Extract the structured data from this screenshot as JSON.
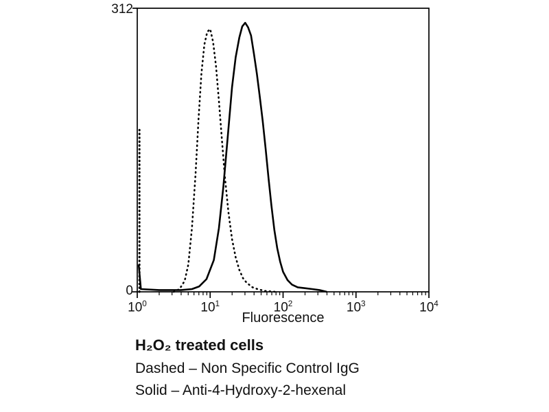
{
  "chart_data": {
    "type": "line",
    "title": "",
    "xlabel": "Fluorescence",
    "ylabel": "",
    "x_scale": "log",
    "x_tick_base": "10",
    "x_tick_exponents": [
      0,
      1,
      2,
      3,
      4
    ],
    "xlim_log": [
      0,
      4
    ],
    "ylim": [
      0,
      312
    ],
    "grid": false,
    "legend_position": "none",
    "series": [
      {
        "name": "Non Specific Control IgG",
        "style": "dashed",
        "points": [
          [
            0.5,
            0
          ],
          [
            0.58,
            3
          ],
          [
            0.65,
            12
          ],
          [
            0.7,
            30
          ],
          [
            0.75,
            70
          ],
          [
            0.8,
            130
          ],
          [
            0.84,
            190
          ],
          [
            0.88,
            240
          ],
          [
            0.92,
            272
          ],
          [
            0.96,
            286
          ],
          [
            1.0,
            289
          ],
          [
            1.04,
            275
          ],
          [
            1.08,
            248
          ],
          [
            1.12,
            210
          ],
          [
            1.16,
            168
          ],
          [
            1.2,
            128
          ],
          [
            1.25,
            88
          ],
          [
            1.3,
            58
          ],
          [
            1.35,
            38
          ],
          [
            1.4,
            24
          ],
          [
            1.45,
            15
          ],
          [
            1.5,
            10
          ],
          [
            1.58,
            5
          ],
          [
            1.65,
            3
          ],
          [
            1.75,
            1
          ],
          [
            1.9,
            0
          ]
        ]
      },
      {
        "name": "Anti-4-Hydroxy-2-hexenal",
        "style": "solid",
        "points": [
          [
            0.02,
            30
          ],
          [
            0.05,
            3
          ],
          [
            0.3,
            2
          ],
          [
            0.6,
            2
          ],
          [
            0.75,
            3
          ],
          [
            0.85,
            6
          ],
          [
            0.95,
            14
          ],
          [
            1.05,
            35
          ],
          [
            1.12,
            70
          ],
          [
            1.18,
            115
          ],
          [
            1.24,
            170
          ],
          [
            1.3,
            225
          ],
          [
            1.35,
            258
          ],
          [
            1.4,
            280
          ],
          [
            1.44,
            292
          ],
          [
            1.48,
            296
          ],
          [
            1.52,
            291
          ],
          [
            1.56,
            282
          ],
          [
            1.6,
            262
          ],
          [
            1.64,
            240
          ],
          [
            1.68,
            215
          ],
          [
            1.72,
            188
          ],
          [
            1.76,
            158
          ],
          [
            1.8,
            125
          ],
          [
            1.84,
            95
          ],
          [
            1.88,
            68
          ],
          [
            1.92,
            48
          ],
          [
            1.96,
            33
          ],
          [
            2.0,
            22
          ],
          [
            2.06,
            13
          ],
          [
            2.12,
            8
          ],
          [
            2.2,
            5
          ],
          [
            2.3,
            4
          ],
          [
            2.4,
            3
          ],
          [
            2.5,
            2
          ],
          [
            2.6,
            0
          ]
        ]
      }
    ],
    "axis_spike": {
      "series": "Non Specific Control IgG",
      "x_log": 0.03,
      "height": 180
    }
  },
  "caption": {
    "title": "H₂O₂ treated cells",
    "dashed": "Dashed – Non Specific Control IgG",
    "solid": "Solid – Anti-4-Hydroxy-2-hexenal"
  },
  "colors": {
    "line": "#000000",
    "background": "#ffffff"
  }
}
